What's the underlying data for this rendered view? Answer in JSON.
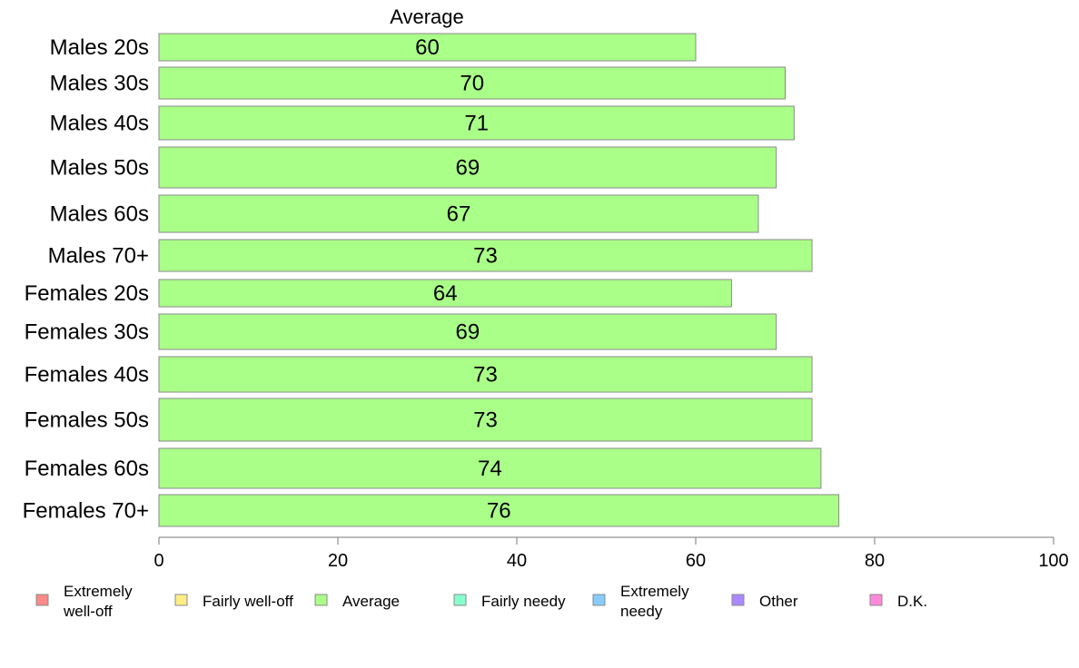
{
  "chart_data": {
    "type": "bar",
    "orientation": "horizontal",
    "series_title": "Average",
    "categories": [
      "Males 20s",
      "Males 30s",
      "Males 40s",
      "Males 50s",
      "Males 60s",
      "Males 70+",
      "Females 20s",
      "Females 30s",
      "Females 40s",
      "Females 50s",
      "Females 60s",
      "Females 70+"
    ],
    "series": [
      {
        "name": "Average",
        "color": "#aaff88",
        "values": [
          60,
          70,
          71,
          69,
          67,
          73,
          64,
          69,
          73,
          73,
          74,
          76
        ],
        "value_labels": [
          "60",
          "70",
          "71",
          "69",
          "67",
          "73",
          "64",
          "69",
          "73",
          "73",
          "74",
          "76"
        ]
      }
    ],
    "xlim": [
      0,
      100
    ],
    "xticks": [
      0,
      20,
      40,
      60,
      80,
      100
    ],
    "grid": false,
    "legend_position": "bottom",
    "legend": [
      {
        "label": "Extremely well-off",
        "color": "#ff8888"
      },
      {
        "label": "Fairly well-off",
        "color": "#ffee88"
      },
      {
        "label": "Average",
        "color": "#aaff88"
      },
      {
        "label": "Fairly needy",
        "color": "#88ffcc"
      },
      {
        "label": "Extremely needy",
        "color": "#88ccff"
      },
      {
        "label": "Other",
        "color": "#aa88ff"
      },
      {
        "label": "D.K.",
        "color": "#ff88dd"
      }
    ]
  }
}
